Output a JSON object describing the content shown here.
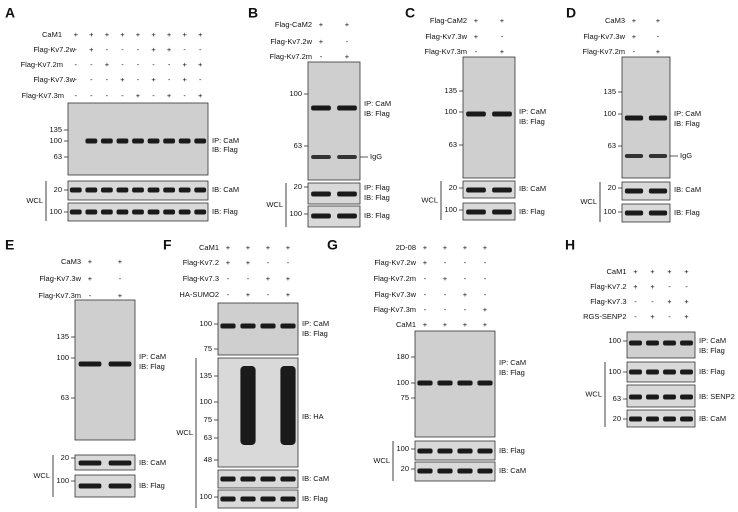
{
  "panels": [
    {
      "letter": "A",
      "conditions": [
        {
          "label": "CaM1",
          "signs": [
            "+",
            "+",
            "+",
            "+",
            "+",
            "+",
            "+",
            "+",
            "+"
          ]
        },
        {
          "label": "Flag-Kv7.2w",
          "signs": [
            "-",
            "+",
            "-",
            "-",
            "-",
            "+",
            "+",
            "-",
            "-"
          ]
        },
        {
          "label": "Flag-Kv7.2m",
          "signs": [
            "-",
            "-",
            "+",
            "-",
            "-",
            "-",
            "-",
            "+",
            "+"
          ]
        },
        {
          "label": "Flag-Kv7.3w",
          "signs": [
            "-",
            "-",
            "-",
            "+",
            "-",
            "+",
            "-",
            "+",
            "-"
          ]
        },
        {
          "label": "Flag-Kv7.3m",
          "signs": [
            "-",
            "-",
            "-",
            "-",
            "+",
            "-",
            "+",
            "-",
            "+"
          ]
        }
      ],
      "blots": [
        {
          "markers": [
            "135",
            "100",
            "63"
          ],
          "labels": [
            "IP: CaM",
            "IB: Flag"
          ]
        },
        {
          "markers": [
            "20"
          ],
          "labels": [
            "IB: CaM"
          ]
        },
        {
          "markers": [
            "100"
          ],
          "labels": [
            "IB: Flag"
          ]
        }
      ],
      "wcl": "WCL"
    },
    {
      "letter": "B",
      "conditions": [
        {
          "label": "Flag-CaM2",
          "signs": [
            "+",
            "+"
          ]
        },
        {
          "label": "Flag-Kv7.2w",
          "signs": [
            "+",
            "-"
          ]
        },
        {
          "label": "Flag-Kv7.2m",
          "signs": [
            "-",
            "+"
          ]
        }
      ],
      "blots": [
        {
          "markers": [
            "100",
            "63"
          ],
          "labels": [
            "IP: CaM",
            "IB: Flag"
          ]
        },
        {
          "markers": [
            "20"
          ],
          "labels": [
            "IP: Flag",
            "IB: Flag"
          ]
        },
        {
          "markers": [
            "100"
          ],
          "labels": [
            "IB: Flag"
          ]
        }
      ],
      "igg": "IgG",
      "wcl": "WCL"
    },
    {
      "letter": "C",
      "conditions": [
        {
          "label": "Flag-CaM2",
          "signs": [
            "+",
            "+"
          ]
        },
        {
          "label": "Flag-Kv7.3w",
          "signs": [
            "+",
            "-"
          ]
        },
        {
          "label": "Flag-Kv7.3m",
          "signs": [
            "-",
            "+"
          ]
        }
      ],
      "blots": [
        {
          "markers": [
            "135",
            "100",
            "63"
          ],
          "labels": [
            "IP: CaM",
            "IB: Flag"
          ]
        },
        {
          "markers": [
            "20"
          ],
          "labels": [
            "IB: CaM"
          ]
        },
        {
          "markers": [
            "100"
          ],
          "labels": [
            "IB: Flag"
          ]
        }
      ],
      "wcl": "WCL"
    },
    {
      "letter": "D",
      "conditions": [
        {
          "label": "CaM3",
          "signs": [
            "+",
            "+"
          ]
        },
        {
          "label": "Flag-Kv7.3w",
          "signs": [
            "+",
            "-"
          ]
        },
        {
          "label": "Flag-Kv7.2m",
          "signs": [
            "-",
            "+"
          ]
        }
      ],
      "blots": [
        {
          "markers": [
            "135",
            "100",
            "63"
          ],
          "labels": [
            "IP: CaM",
            "IB: Flag"
          ]
        },
        {
          "markers": [
            "20"
          ],
          "labels": [
            "IB: CaM"
          ]
        },
        {
          "markers": [
            "100"
          ],
          "labels": [
            "IB: Flag"
          ]
        }
      ],
      "igg": "IgG",
      "wcl": "WCL"
    },
    {
      "letter": "E",
      "conditions": [
        {
          "label": "CaM3",
          "signs": [
            "+",
            "+"
          ]
        },
        {
          "label": "Flag-Kv7.3w",
          "signs": [
            "+",
            "-"
          ]
        },
        {
          "label": "Flag-Kv7.3m",
          "signs": [
            "-",
            "+"
          ]
        }
      ],
      "blots": [
        {
          "markers": [
            "135",
            "100",
            "63"
          ],
          "labels": [
            "IP: CaM",
            "IB: Flag"
          ]
        },
        {
          "markers": [
            "20"
          ],
          "labels": [
            "IB: CaM"
          ]
        },
        {
          "markers": [
            "100"
          ],
          "labels": [
            "IB: Flag"
          ]
        }
      ],
      "wcl": "WCL"
    },
    {
      "letter": "F",
      "conditions": [
        {
          "label": "CaM1",
          "signs": [
            "+",
            "+",
            "+",
            "+"
          ]
        },
        {
          "label": "Flag-Kv7.2",
          "signs": [
            "+",
            "+",
            "-",
            "-"
          ]
        },
        {
          "label": "Flag-Kv7.3",
          "signs": [
            "-",
            "-",
            "+",
            "+"
          ]
        },
        {
          "label": "HA-SUMO2",
          "signs": [
            "-",
            "+",
            "-",
            "+"
          ]
        }
      ],
      "blots": [
        {
          "markers": [
            "100",
            "75"
          ],
          "labels": [
            "IP: CaM",
            "IB: Flag"
          ]
        },
        {
          "markers": [
            "135",
            "100",
            "75",
            "63",
            "48"
          ],
          "labels": [
            "IB: HA"
          ]
        },
        {
          "markers": [],
          "labels": [
            "IB: CaM"
          ]
        },
        {
          "markers": [
            "100"
          ],
          "labels": [
            "IB: Flag"
          ]
        }
      ],
      "wcl": "WCL"
    },
    {
      "letter": "G",
      "conditions": [
        {
          "label": "2D-08",
          "signs": [
            "+",
            "+",
            "+",
            "+"
          ]
        },
        {
          "label": "Flag-Kv7.2w",
          "signs": [
            "+",
            "-",
            "-",
            "-"
          ]
        },
        {
          "label": "Flag-Kv7.2m",
          "signs": [
            "-",
            "+",
            "-",
            "-"
          ]
        },
        {
          "label": "Flag-Kv7.3w",
          "signs": [
            "-",
            "-",
            "+",
            "-"
          ]
        },
        {
          "label": "Flag-Kv7.3m",
          "signs": [
            "-",
            "-",
            "-",
            "+"
          ]
        },
        {
          "label": "CaM1",
          "signs": [
            "+",
            "+",
            "+",
            "+"
          ]
        }
      ],
      "blots": [
        {
          "markers": [
            "180",
            "100",
            "75"
          ],
          "labels": [
            "IP: CaM",
            "IB: Flag"
          ]
        },
        {
          "markers": [
            "100"
          ],
          "labels": [
            "IB: Flag"
          ]
        },
        {
          "markers": [
            "20"
          ],
          "labels": [
            "IB: CaM"
          ]
        }
      ],
      "wcl": "WCL"
    },
    {
      "letter": "H",
      "conditions": [
        {
          "label": "CaM1",
          "signs": [
            "+",
            "+",
            "+",
            "+"
          ]
        },
        {
          "label": "Flag-Kv7.2",
          "signs": [
            "+",
            "+",
            "-",
            "-"
          ]
        },
        {
          "label": "Flag-Kv7.3",
          "signs": [
            "-",
            "-",
            "+",
            "+"
          ]
        },
        {
          "label": "RGS-SENP2",
          "signs": [
            "-",
            "+",
            "-",
            "+"
          ]
        }
      ],
      "blots": [
        {
          "markers": [
            "100"
          ],
          "labels": [
            "IP: CaM",
            "IB: Flag"
          ]
        },
        {
          "markers": [
            "100"
          ],
          "labels": [
            "IB: Flag"
          ]
        },
        {
          "markers": [
            "63"
          ],
          "labels": [
            "IB: SENP2"
          ]
        },
        {
          "markers": [
            "20"
          ],
          "labels": [
            "IB: CaM"
          ]
        }
      ],
      "wcl": "WCL"
    }
  ]
}
